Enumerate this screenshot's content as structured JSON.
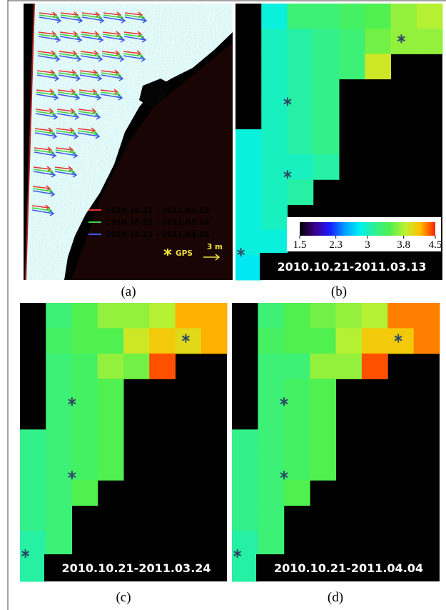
{
  "panels": [
    {
      "caption": "(a)",
      "legend": [
        {
          "label": "2010.10.21 – 2011.03.13",
          "color": "#e8322a"
        },
        {
          "label": "2010.10.21 – 2011.03.24",
          "color": "#3fd13a"
        },
        {
          "label": "2010.10.21 – 2011.04.04",
          "color": "#3f5ae8"
        }
      ],
      "gps_label": "GPS",
      "scale_label": "3 m"
    },
    {
      "caption": "(b)",
      "date_label": "2010.10.21-2011.03.13",
      "grid": [
        [
          null,
          2.9,
          3.3,
          3.3,
          3.4,
          3.5,
          3.7,
          3.8
        ],
        [
          null,
          3.0,
          3.1,
          3.2,
          3.3,
          3.6,
          3.7,
          3.7
        ],
        [
          null,
          3.0,
          3.1,
          3.2,
          3.3,
          3.9,
          null,
          null
        ],
        [
          null,
          3.0,
          3.1,
          3.2,
          null,
          null,
          null,
          null
        ],
        [
          null,
          3.0,
          3.1,
          3.2,
          null,
          null,
          null,
          null
        ],
        [
          2.9,
          3.0,
          3.1,
          3.2,
          null,
          null,
          null,
          null
        ],
        [
          2.9,
          3.0,
          3.0,
          3.1,
          null,
          null,
          null,
          null
        ],
        [
          2.9,
          3.0,
          3.1,
          null,
          null,
          null,
          null,
          null
        ],
        [
          2.9,
          3.0,
          null,
          null,
          null,
          null,
          null,
          null
        ],
        [
          2.9,
          2.9,
          null,
          null,
          null,
          null,
          null,
          null
        ],
        [
          2.8,
          null,
          null,
          null,
          null,
          null,
          null,
          null
        ]
      ]
    },
    {
      "caption": "(c)",
      "date_label": "2010.10.21-2011.03.24",
      "grid": [
        [
          null,
          3.3,
          3.5,
          3.7,
          3.7,
          3.8,
          4.2,
          4.2
        ],
        [
          null,
          3.4,
          3.5,
          3.5,
          3.9,
          4.1,
          4.0,
          4.2
        ],
        [
          null,
          3.3,
          3.4,
          3.7,
          3.6,
          4.4,
          null,
          null
        ],
        [
          null,
          3.3,
          3.4,
          3.5,
          null,
          null,
          null,
          null
        ],
        [
          null,
          3.3,
          3.4,
          3.5,
          null,
          null,
          null,
          null
        ],
        [
          3.2,
          3.3,
          3.4,
          3.5,
          null,
          null,
          null,
          null
        ],
        [
          3.2,
          3.3,
          3.4,
          3.5,
          null,
          null,
          null,
          null
        ],
        [
          3.2,
          3.3,
          3.5,
          null,
          null,
          null,
          null,
          null
        ],
        [
          3.2,
          3.3,
          null,
          null,
          null,
          null,
          null,
          null
        ],
        [
          3.1,
          3.3,
          null,
          null,
          null,
          null,
          null,
          null
        ],
        [
          3.1,
          null,
          null,
          null,
          null,
          null,
          null,
          null
        ]
      ]
    },
    {
      "caption": "(d)",
      "date_label": "2010.10.21-2011.04.04",
      "grid": [
        [
          null,
          3.3,
          3.5,
          3.6,
          3.7,
          3.8,
          4.3,
          4.3
        ],
        [
          null,
          3.4,
          3.5,
          3.5,
          3.8,
          4.1,
          4.1,
          4.3
        ],
        [
          null,
          3.3,
          3.3,
          3.7,
          3.7,
          4.4,
          null,
          null
        ],
        [
          null,
          3.3,
          3.4,
          3.5,
          null,
          null,
          null,
          null
        ],
        [
          null,
          3.3,
          3.4,
          3.5,
          null,
          null,
          null,
          null
        ],
        [
          3.2,
          3.3,
          3.4,
          3.5,
          null,
          null,
          null,
          null
        ],
        [
          3.2,
          3.3,
          3.4,
          3.5,
          null,
          null,
          null,
          null
        ],
        [
          3.2,
          3.3,
          3.5,
          null,
          null,
          null,
          null,
          null
        ],
        [
          3.2,
          3.3,
          null,
          null,
          null,
          null,
          null,
          null
        ],
        [
          3.1,
          3.3,
          null,
          null,
          null,
          null,
          null,
          null
        ],
        [
          3.1,
          null,
          null,
          null,
          null,
          null,
          null,
          null
        ]
      ]
    }
  ],
  "colorbar": {
    "ticks": [
      1.5,
      2.3,
      3,
      3.8,
      4.5
    ],
    "colors": [
      "#000000",
      "#3c0088",
      "#1a1aff",
      "#00a0ff",
      "#00f0f0",
      "#30f090",
      "#50f050",
      "#c0f030",
      "#ffc000",
      "#ff2000"
    ]
  }
}
